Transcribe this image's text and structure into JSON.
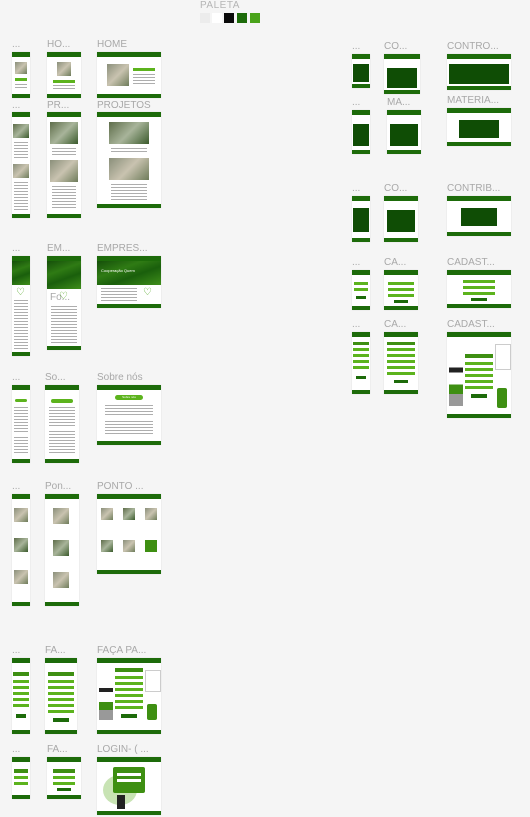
{
  "palette": {
    "title": "PALETA",
    "colors": [
      "#ececec",
      "#ffffff",
      "#0a0a0a",
      "#1d6b0a",
      "#4aa31a"
    ]
  },
  "frames": {
    "home_m": "...",
    "home_t": "HO...",
    "home_d": "HOME",
    "proj_m": "...",
    "proj_t": "PR...",
    "proj_d": "PROJETOS",
    "emp_m": "...",
    "emp_t": "EM...",
    "emp_d": "EMPRES...",
    "emp_t2": "Fo...",
    "sob_m": "...",
    "sob_t": "So...",
    "sob_d": "Sobre nós",
    "pon_m": "...",
    "pon_t": "Pon...",
    "pon_d": "PONTO ...",
    "fac_m": "...",
    "fac_t": "FA...",
    "fac_d": "FAÇA PA...",
    "log_m": "...",
    "log_t": "FA...",
    "log_d": "LOGIN- ( ...",
    "con_m": "...",
    "con_t": "CO...",
    "con_d": "CONTRO...",
    "mat_m": "...",
    "mat_t": "MA...",
    "mat_d": "MATERIA...",
    "ctb_m": "...",
    "ctb_t": "CO...",
    "ctb_d": "CONTRIB...",
    "cad1_m": "...",
    "cad1_t": "CA...",
    "cad1_d": "CADAST...",
    "cad2_m": "...",
    "cad2_t": "CA...",
    "cad2_d": "CADAST..."
  },
  "content": {
    "empresa_heading": "Cooperação Quem",
    "sobre_button": "Sobre nós"
  }
}
